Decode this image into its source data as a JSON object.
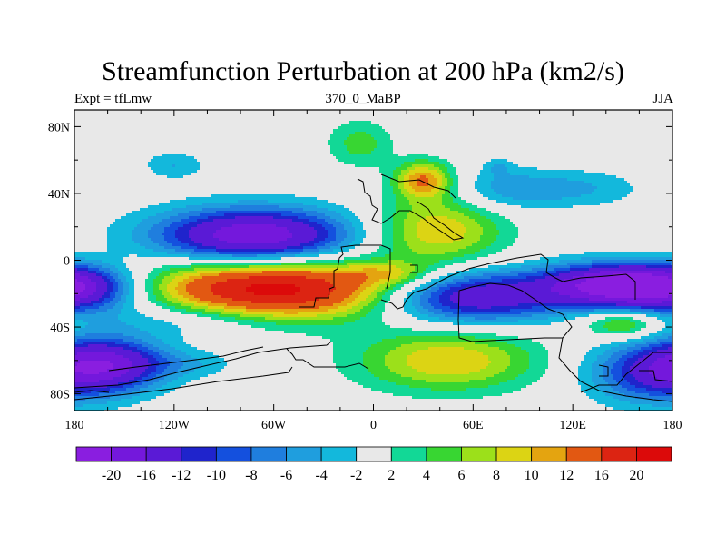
{
  "title": "Streamfunction Perturbation at 200 hPa (km2/s)",
  "subtitle_left": "Expt = tfLmw",
  "subtitle_center": "370_0_MaBP",
  "subtitle_right": "JJA",
  "axes": {
    "x_ticks": [
      {
        "value": -180,
        "label": "180"
      },
      {
        "value": -120,
        "label": "120W"
      },
      {
        "value": -60,
        "label": "60W"
      },
      {
        "value": 0,
        "label": "0"
      },
      {
        "value": 60,
        "label": "60E"
      },
      {
        "value": 120,
        "label": "120E"
      },
      {
        "value": 180,
        "label": "180"
      }
    ],
    "y_ticks": [
      {
        "value": 80,
        "label": "80N"
      },
      {
        "value": 40,
        "label": "40N"
      },
      {
        "value": 0,
        "label": "0"
      },
      {
        "value": -40,
        "label": "40S"
      },
      {
        "value": -80,
        "label": "80S"
      }
    ],
    "lon_range": [
      -180,
      180
    ],
    "lat_range": [
      -90,
      90
    ]
  },
  "colorbar": {
    "labels": [
      "-20",
      "-16",
      "-12",
      "-10",
      "-8",
      "-6",
      "-4",
      "-2",
      "2",
      "4",
      "6",
      "8",
      "10",
      "12",
      "16",
      "20"
    ],
    "colors": [
      "#8a1ee0",
      "#7418dc",
      "#5a1ad6",
      "#1f24cc",
      "#1450de",
      "#1f7ede",
      "#1f9ede",
      "#13b8dc",
      "#e8e8e8",
      "#12d896",
      "#38d632",
      "#9ce01a",
      "#dcd414",
      "#e4a410",
      "#e25812",
      "#dc2412",
      "#dc0a0a"
    ]
  },
  "chart_data": {
    "type": "heatmap",
    "title": "Streamfunction Perturbation at 200 hPa (km2/s)",
    "units": "km2/s",
    "level": "200 hPa",
    "season": "JJA",
    "experiment": "tfLmw",
    "age": "370_0_MaBP",
    "lon_range": [
      -180,
      180
    ],
    "lat_range": [
      -90,
      90
    ],
    "contour_levels": [
      -20,
      -16,
      -12,
      -10,
      -8,
      -6,
      -4,
      -2,
      2,
      4,
      6,
      8,
      10,
      12,
      16,
      20
    ],
    "features": [
      {
        "lon": -60,
        "lat": -17,
        "value": 22,
        "dlon": 55,
        "dlat": 13
      },
      {
        "lon": -72,
        "lat": 14,
        "value": -20,
        "dlon": 42,
        "dlat": 12
      },
      {
        "lon": 38,
        "lat": 18,
        "value": 10,
        "dlon": 28,
        "dlat": 14
      },
      {
        "lon": 30,
        "lat": 48,
        "value": 12,
        "dlon": 12,
        "dlat": 8
      },
      {
        "lon": 45,
        "lat": -60,
        "value": 10,
        "dlon": 38,
        "dlat": 13
      },
      {
        "lon": 58,
        "lat": -22,
        "value": -16,
        "dlon": 38,
        "dlat": 11
      },
      {
        "lon": 145,
        "lat": -15,
        "value": -20,
        "dlon": 32,
        "dlat": 9
      },
      {
        "lon": 150,
        "lat": -38,
        "value": 8,
        "dlon": 16,
        "dlat": 6
      },
      {
        "lon": -158,
        "lat": -62,
        "value": -14,
        "dlon": 24,
        "dlat": 11
      },
      {
        "lon": 170,
        "lat": -67,
        "value": -12,
        "dlon": 28,
        "dlat": 13
      },
      {
        "lon": -178,
        "lat": -17,
        "value": -14,
        "dlon": 28,
        "dlat": 10
      },
      {
        "lon": -120,
        "lat": 57,
        "value": -4,
        "dlon": 13,
        "dlat": 6
      },
      {
        "lon": 80,
        "lat": 42,
        "value": -5,
        "dlon": 22,
        "dlat": 9
      },
      {
        "lon": 125,
        "lat": 43,
        "value": -4,
        "dlon": 26,
        "dlat": 8
      },
      {
        "lon": 75,
        "lat": 56,
        "value": -3,
        "dlon": 6,
        "dlat": 4
      },
      {
        "lon": -112,
        "lat": -35,
        "value": -5,
        "dlon": 40,
        "dlat": 8
      },
      {
        "lon": -110,
        "lat": -62,
        "value": -3,
        "dlon": 22,
        "dlat": 6
      },
      {
        "lon": -8,
        "lat": 70,
        "value": 5,
        "dlon": 14,
        "dlat": 10
      },
      {
        "lon": 10,
        "lat": -8,
        "value": 5,
        "dlon": 18,
        "dlat": 5
      }
    ]
  }
}
